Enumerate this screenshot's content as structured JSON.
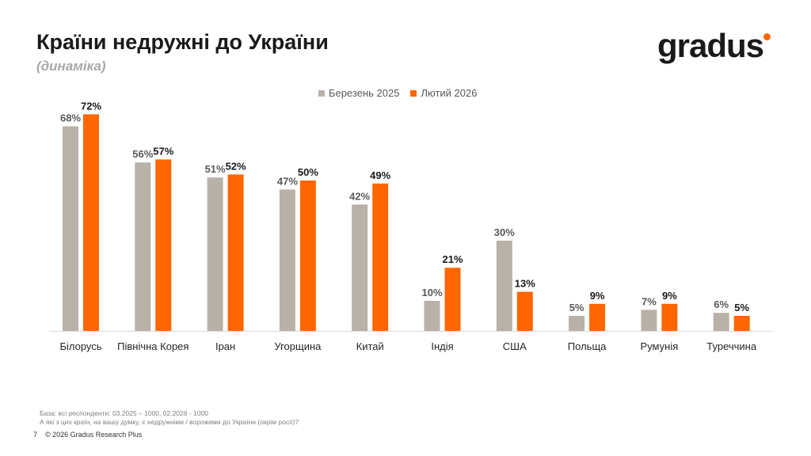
{
  "header": {
    "title": "Країни недружні до України",
    "subtitle": "(динаміка)",
    "logo": "gradus"
  },
  "chart_data": {
    "type": "bar",
    "title": "Країни недружні до України",
    "categories": [
      "Білорусь",
      "Північна Корея",
      "Іран",
      "Угорщина",
      "Китай",
      "Індія",
      "США",
      "Польща",
      "Румунія",
      "Туреччина"
    ],
    "series": [
      {
        "name": "Березень 2025",
        "color": "#b8b1a7",
        "values": [
          68,
          56,
          51,
          47,
          42,
          10,
          30,
          5,
          7,
          6
        ]
      },
      {
        "name": "Лютий 2026",
        "color": "#ff6600",
        "values": [
          72,
          57,
          52,
          50,
          49,
          21,
          13,
          9,
          9,
          5
        ]
      }
    ],
    "ylim": [
      0,
      80
    ],
    "legend": "top-center",
    "grid": false,
    "value_suffix": "%"
  },
  "footer": {
    "base": "База: всі респонденти: 03.2025 – 1000, 02.2026 - 1000",
    "question": "А які з цих країн, на вашу думку, є недружніми / ворожими до України (окрім росії)?",
    "page": "7",
    "copyright": "© 2026 Gradus Research Plus"
  }
}
